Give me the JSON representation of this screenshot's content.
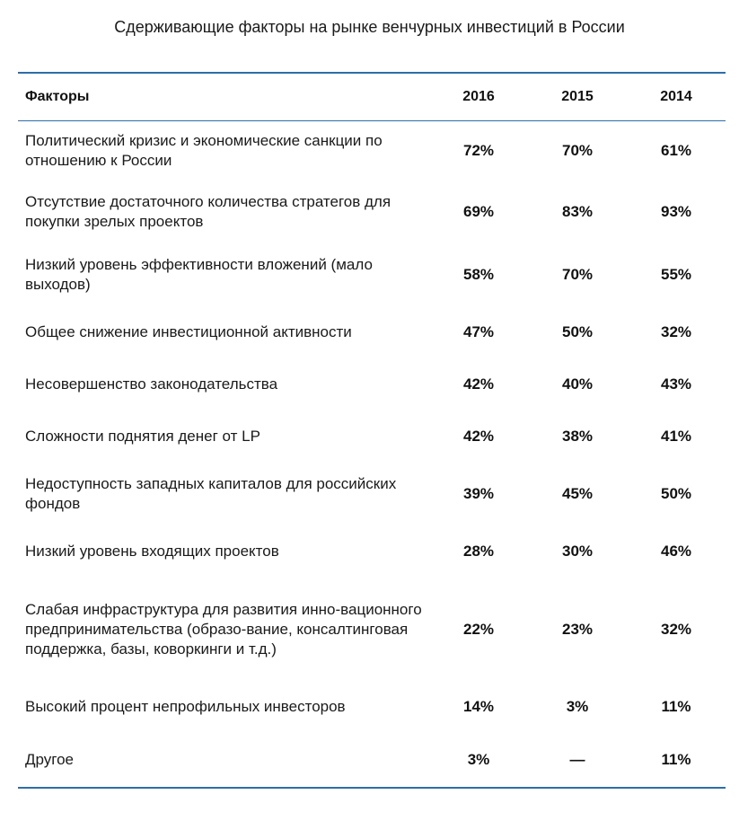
{
  "title": "Сдерживающие факторы на рынке венчурных инвестиций в России",
  "table": {
    "headers": [
      "Факторы",
      "2016",
      "2015",
      "2014"
    ],
    "rows": [
      {
        "factor": "Политический кризис и экономические санкции по отношению к России",
        "v2016": "72%",
        "v2015": "70%",
        "v2014": "61%"
      },
      {
        "factor": "Отсутствие достаточного количества стратегов для покупки зрелых проектов",
        "v2016": "69%",
        "v2015": "83%",
        "v2014": "93%"
      },
      {
        "factor": "Низкий уровень эффективности вложений (мало выходов)",
        "v2016": "58%",
        "v2015": "70%",
        "v2014": "55%"
      },
      {
        "factor": "Общее снижение инвестиционной активности",
        "v2016": "47%",
        "v2015": "50%",
        "v2014": "32%"
      },
      {
        "factor": "Несовершенство законодательства",
        "v2016": "42%",
        "v2015": "40%",
        "v2014": "43%"
      },
      {
        "factor": "Сложности поднятия денег от LP",
        "v2016": "42%",
        "v2015": "38%",
        "v2014": "41%"
      },
      {
        "factor": "Недоступность западных капиталов для российских фондов",
        "v2016": "39%",
        "v2015": "45%",
        "v2014": "50%"
      },
      {
        "factor": "Низкий уровень входящих проектов",
        "v2016": "28%",
        "v2015": "30%",
        "v2014": "46%"
      },
      {
        "factor": "Слабая инфраструктура для развития инно-вационного предпринимательства (образо-вание, консалтинговая поддержка, базы, коворкинги и т.д.)",
        "v2016": "22%",
        "v2015": "23%",
        "v2014": "32%"
      },
      {
        "factor": "Высокий процент непрофильных инвесторов",
        "v2016": "14%",
        "v2015": "3%",
        "v2014": "11%"
      },
      {
        "factor": "Другое",
        "v2016": "3%",
        "v2015": "—",
        "v2014": "11%"
      }
    ]
  },
  "colors": {
    "rule": "#2d6ea8",
    "text": "#1a1a1a"
  }
}
